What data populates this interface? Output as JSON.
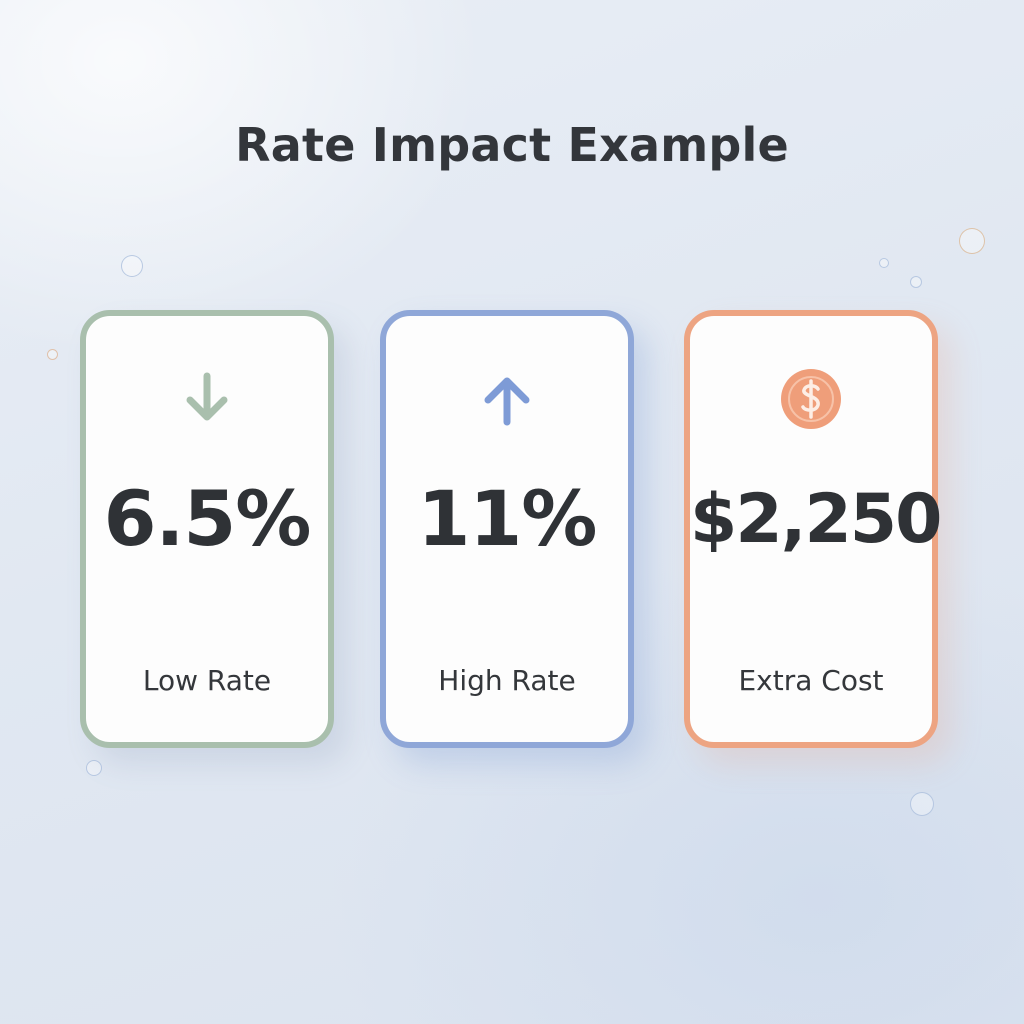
{
  "title": "Rate Impact Example",
  "cards": [
    {
      "value": "6.5%",
      "label": "Low Rate",
      "icon": "arrow-down-icon",
      "accent": "#a9bfad"
    },
    {
      "value": "11%",
      "label": "High Rate",
      "icon": "arrow-up-icon",
      "accent": "#8fa7d8"
    },
    {
      "value": "$2,250",
      "label": "Extra Cost",
      "icon": "dollar-coin-icon",
      "accent": "#eda482"
    }
  ]
}
